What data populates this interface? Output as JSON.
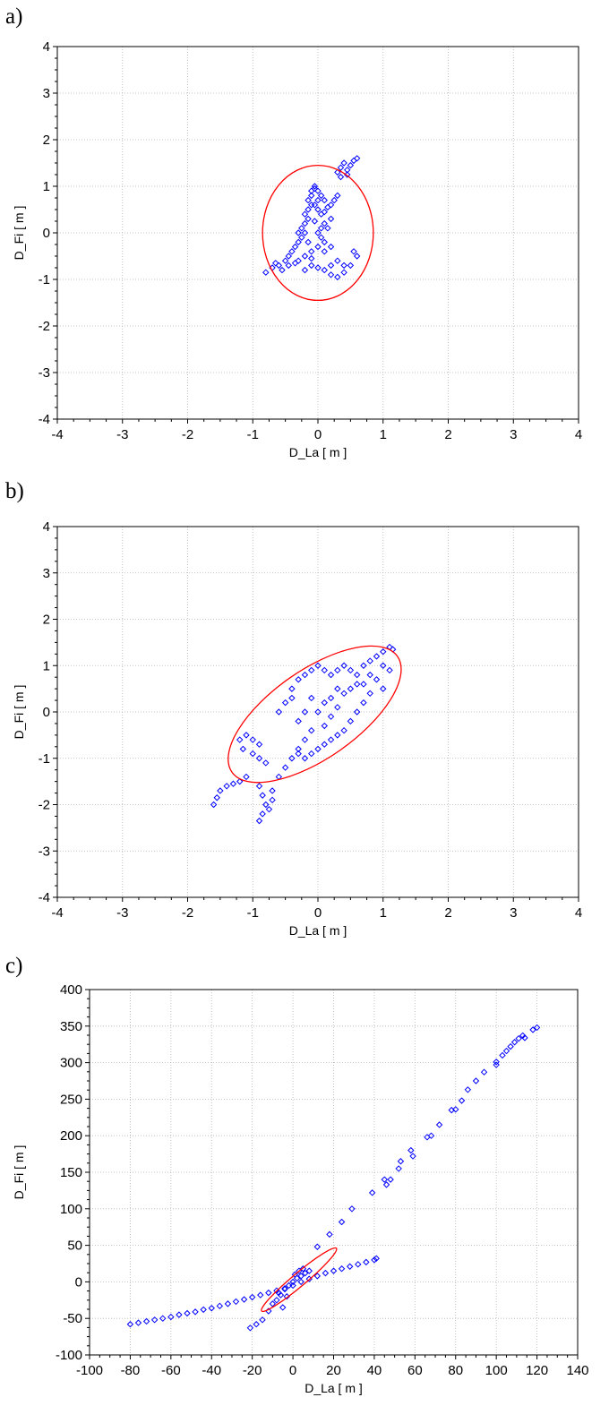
{
  "panels": [
    {
      "letter": "a)"
    },
    {
      "letter": "b)"
    },
    {
      "letter": "c)"
    }
  ],
  "chart_data": [
    {
      "type": "scatter",
      "xlabel": "D_La [ m ]",
      "ylabel": "D_Fi [ m ]",
      "xlim": [
        -4,
        4
      ],
      "ylim": [
        -4,
        4
      ],
      "xticks": [
        "-4",
        "-3",
        "-2",
        "-1",
        "0",
        "1",
        "2",
        "3",
        "4"
      ],
      "yticks": [
        "4",
        "3",
        "2",
        "1",
        "0",
        "-1",
        "-2",
        "-3",
        "-4"
      ],
      "grid": true,
      "marker_color": "#0000ff",
      "ellipse_color": "#ff0000",
      "ellipse": {
        "cx": 0.0,
        "cy": 0.0,
        "rx": 0.85,
        "ry": 1.45,
        "angle": 0
      },
      "series": [
        {
          "values": [
            [
              -0.8,
              -0.85
            ],
            [
              -0.7,
              -0.75
            ],
            [
              -0.6,
              -0.7
            ],
            [
              -0.5,
              -0.6
            ],
            [
              -0.45,
              -0.5
            ],
            [
              -0.4,
              -0.4
            ],
            [
              -0.35,
              -0.3
            ],
            [
              -0.3,
              -0.2
            ],
            [
              -0.25,
              -0.1
            ],
            [
              -0.2,
              0.0
            ],
            [
              -0.25,
              0.1
            ],
            [
              -0.2,
              0.2
            ],
            [
              -0.15,
              0.3
            ],
            [
              -0.2,
              0.4
            ],
            [
              -0.15,
              0.5
            ],
            [
              -0.1,
              0.6
            ],
            [
              -0.15,
              0.7
            ],
            [
              -0.1,
              0.8
            ],
            [
              -0.1,
              0.9
            ],
            [
              -0.05,
              1.0
            ],
            [
              0.0,
              0.9
            ],
            [
              0.05,
              0.8
            ],
            [
              0.0,
              0.7
            ],
            [
              -0.05,
              0.6
            ],
            [
              0.0,
              0.5
            ],
            [
              0.05,
              0.4
            ],
            [
              0.1,
              0.45
            ],
            [
              0.15,
              0.55
            ],
            [
              0.2,
              0.6
            ],
            [
              0.25,
              0.7
            ],
            [
              0.3,
              0.8
            ],
            [
              0.1,
              0.2
            ],
            [
              0.05,
              0.1
            ],
            [
              0.0,
              0.0
            ],
            [
              0.05,
              -0.1
            ],
            [
              0.1,
              -0.2
            ],
            [
              0.0,
              -0.3
            ],
            [
              -0.1,
              -0.4
            ],
            [
              -0.2,
              -0.5
            ],
            [
              -0.3,
              -0.6
            ],
            [
              -0.1,
              -0.7
            ],
            [
              0.0,
              -0.75
            ],
            [
              0.1,
              -0.8
            ],
            [
              0.2,
              -0.7
            ],
            [
              0.3,
              -0.6
            ],
            [
              0.4,
              -0.7
            ],
            [
              0.2,
              -0.9
            ],
            [
              0.3,
              -0.95
            ],
            [
              0.4,
              -0.85
            ],
            [
              0.5,
              -0.7
            ],
            [
              0.6,
              -0.5
            ],
            [
              0.55,
              -0.4
            ],
            [
              0.3,
              1.3
            ],
            [
              0.35,
              1.4
            ],
            [
              0.4,
              1.5
            ],
            [
              0.45,
              1.35
            ],
            [
              0.5,
              1.45
            ],
            [
              0.55,
              1.55
            ],
            [
              0.6,
              1.6
            ],
            [
              0.35,
              1.2
            ],
            [
              0.45,
              1.25
            ],
            [
              -0.55,
              -0.8
            ],
            [
              -0.65,
              -0.65
            ],
            [
              -0.45,
              -0.7
            ],
            [
              -0.35,
              -0.65
            ],
            [
              -0.2,
              -0.8
            ],
            [
              -0.1,
              -0.55
            ],
            [
              0.1,
              -0.4
            ],
            [
              0.2,
              -0.3
            ],
            [
              -0.3,
              0.0
            ],
            [
              -0.15,
              -0.2
            ],
            [
              0.15,
              0.1
            ],
            [
              0.2,
              0.3
            ],
            [
              -0.05,
              0.25
            ],
            [
              0.1,
              0.7
            ],
            [
              -0.05,
              0.95
            ]
          ]
        }
      ]
    },
    {
      "type": "scatter",
      "xlabel": "D_La [ m ]",
      "ylabel": "D_Fi [ m ]",
      "xlim": [
        -4,
        4
      ],
      "ylim": [
        -4,
        4
      ],
      "xticks": [
        "-4",
        "-3",
        "-2",
        "-1",
        "0",
        "1",
        "2",
        "3",
        "4"
      ],
      "yticks": [
        "4",
        "3",
        "2",
        "1",
        "0",
        "-1",
        "-2",
        "-3",
        "-4"
      ],
      "grid": true,
      "marker_color": "#0000ff",
      "ellipse_color": "#ff0000",
      "ellipse": {
        "cx": -0.05,
        "cy": -0.05,
        "rx": 1.55,
        "ry": 0.95,
        "angle": 35
      },
      "series": [
        {
          "values": [
            [
              -1.6,
              -2.0
            ],
            [
              -1.55,
              -1.85
            ],
            [
              -1.5,
              -1.7
            ],
            [
              -1.4,
              -1.6
            ],
            [
              -1.3,
              -1.55
            ],
            [
              -1.2,
              -1.5
            ],
            [
              -1.1,
              -1.4
            ],
            [
              -1.2,
              -0.6
            ],
            [
              -1.1,
              -0.5
            ],
            [
              -1.0,
              -0.6
            ],
            [
              -0.9,
              -0.7
            ],
            [
              -1.15,
              -0.8
            ],
            [
              -1.0,
              -0.9
            ],
            [
              -0.9,
              -1.0
            ],
            [
              -0.8,
              -1.1
            ],
            [
              -0.9,
              -1.6
            ],
            [
              -0.85,
              -1.8
            ],
            [
              -0.8,
              -2.0
            ],
            [
              -0.85,
              -2.2
            ],
            [
              -0.9,
              -2.35
            ],
            [
              -0.7,
              -1.7
            ],
            [
              -0.75,
              -2.1
            ],
            [
              -0.7,
              -1.9
            ],
            [
              -0.6,
              -1.4
            ],
            [
              -0.5,
              -1.2
            ],
            [
              -0.4,
              -1.0
            ],
            [
              -0.3,
              -0.8
            ],
            [
              -0.2,
              -0.6
            ],
            [
              -0.6,
              0.0
            ],
            [
              -0.5,
              0.2
            ],
            [
              -0.4,
              0.5
            ],
            [
              -0.3,
              0.7
            ],
            [
              -0.2,
              0.8
            ],
            [
              -0.1,
              0.9
            ],
            [
              0.0,
              1.0
            ],
            [
              0.1,
              0.9
            ],
            [
              0.2,
              0.8
            ],
            [
              0.3,
              0.9
            ],
            [
              0.4,
              1.0
            ],
            [
              0.5,
              0.9
            ],
            [
              0.6,
              0.8
            ],
            [
              0.7,
              1.0
            ],
            [
              0.8,
              1.1
            ],
            [
              0.9,
              1.2
            ],
            [
              1.0,
              1.3
            ],
            [
              1.1,
              1.4
            ],
            [
              1.15,
              1.35
            ],
            [
              1.0,
              1.0
            ],
            [
              1.1,
              0.9
            ],
            [
              0.9,
              0.7
            ],
            [
              1.0,
              0.5
            ],
            [
              0.8,
              0.4
            ],
            [
              0.7,
              0.2
            ],
            [
              0.6,
              0.0
            ],
            [
              0.5,
              -0.2
            ],
            [
              0.4,
              -0.4
            ],
            [
              0.3,
              -0.5
            ],
            [
              0.2,
              -0.6
            ],
            [
              0.1,
              -0.7
            ],
            [
              0.0,
              -0.8
            ],
            [
              -0.1,
              -0.9
            ],
            [
              -0.2,
              -1.0
            ],
            [
              -0.3,
              -0.9
            ],
            [
              0.0,
              0.0
            ],
            [
              0.1,
              0.2
            ],
            [
              0.2,
              0.3
            ],
            [
              0.3,
              0.5
            ],
            [
              0.4,
              0.4
            ],
            [
              -0.1,
              0.3
            ],
            [
              -0.2,
              0.0
            ],
            [
              0.1,
              -0.3
            ],
            [
              -0.3,
              -0.2
            ],
            [
              0.6,
              0.6
            ],
            [
              0.3,
              0.1
            ],
            [
              -0.4,
              0.3
            ],
            [
              0.5,
              0.5
            ],
            [
              0.2,
              -0.1
            ],
            [
              0.8,
              0.8
            ],
            [
              -0.1,
              -0.4
            ],
            [
              0.7,
              0.6
            ]
          ]
        }
      ]
    },
    {
      "type": "scatter",
      "xlabel": "D_La [ m ]",
      "ylabel": "D_Fi [ m ]",
      "xlim": [
        -100,
        140
      ],
      "ylim": [
        -100,
        400
      ],
      "xticks": [
        "-100",
        "-80",
        "-60",
        "-40",
        "-20",
        "0",
        "20",
        "40",
        "60",
        "80",
        "100",
        "120",
        "140"
      ],
      "yticks": [
        "400",
        "350",
        "300",
        "250",
        "200",
        "150",
        "100",
        "50",
        "0",
        "-50",
        "-100"
      ],
      "grid": true,
      "marker_color": "#0000ff",
      "ellipse_color": "#ff0000",
      "ellipse": {
        "cx": 3,
        "cy": 3,
        "rx": 24,
        "ry": 9,
        "angle": 40
      },
      "series": [
        {
          "values": [
            [
              -80,
              -58
            ],
            [
              -76,
              -56
            ],
            [
              -72,
              -54
            ],
            [
              -68,
              -52
            ],
            [
              -64,
              -50
            ],
            [
              -60,
              -48
            ],
            [
              -56,
              -45
            ],
            [
              -52,
              -43
            ],
            [
              -48,
              -41
            ],
            [
              -44,
              -38
            ],
            [
              -40,
              -36
            ],
            [
              -36,
              -33
            ],
            [
              -32,
              -30
            ],
            [
              -28,
              -27
            ],
            [
              -24,
              -24
            ],
            [
              -20,
              -21
            ],
            [
              -16,
              -18
            ],
            [
              -12,
              -15
            ],
            [
              -8,
              -12
            ],
            [
              -4,
              -9
            ],
            [
              0,
              -5
            ],
            [
              4,
              0
            ],
            [
              8,
              4
            ],
            [
              12,
              8
            ],
            [
              16,
              12
            ],
            [
              20,
              15
            ],
            [
              24,
              18
            ],
            [
              28,
              21
            ],
            [
              32,
              24
            ],
            [
              36,
              27
            ],
            [
              40,
              30
            ],
            [
              41,
              32
            ]
          ]
        },
        {
          "values": [
            [
              -21,
              -63
            ],
            [
              -18,
              -58
            ],
            [
              -15,
              -52
            ],
            [
              -12,
              -40
            ],
            [
              -10,
              -30
            ],
            [
              -8,
              -25
            ],
            [
              -6,
              -18
            ],
            [
              -4,
              -10
            ],
            [
              -2,
              -5
            ],
            [
              0,
              0
            ],
            [
              2,
              5
            ],
            [
              4,
              8
            ],
            [
              6,
              12
            ],
            [
              8,
              15
            ],
            [
              -5,
              -35
            ],
            [
              -3,
              -20
            ],
            [
              1,
              10
            ],
            [
              3,
              15
            ],
            [
              5,
              18
            ],
            [
              -7,
              -15
            ]
          ]
        },
        {
          "values": [
            [
              12,
              48
            ],
            [
              18,
              65
            ],
            [
              24,
              82
            ],
            [
              29,
              100
            ],
            [
              39,
              122
            ],
            [
              45,
              140
            ],
            [
              46,
              133
            ],
            [
              48,
              140
            ],
            [
              52,
              155
            ],
            [
              53,
              165
            ],
            [
              58,
              180
            ],
            [
              59,
              172
            ],
            [
              66,
              198
            ],
            [
              68,
              200
            ],
            [
              72,
              215
            ],
            [
              78,
              235
            ],
            [
              80,
              236
            ],
            [
              83,
              248
            ],
            [
              86,
              263
            ],
            [
              90,
              275
            ],
            [
              94,
              287
            ],
            [
              100,
              297
            ],
            [
              100,
              301
            ],
            [
              103,
              310
            ],
            [
              105,
              316
            ],
            [
              107,
              322
            ],
            [
              109,
              328
            ],
            [
              111,
              333
            ],
            [
              113,
              337
            ],
            [
              114,
              334
            ],
            [
              118,
              345
            ],
            [
              120,
              348
            ]
          ]
        }
      ]
    }
  ]
}
